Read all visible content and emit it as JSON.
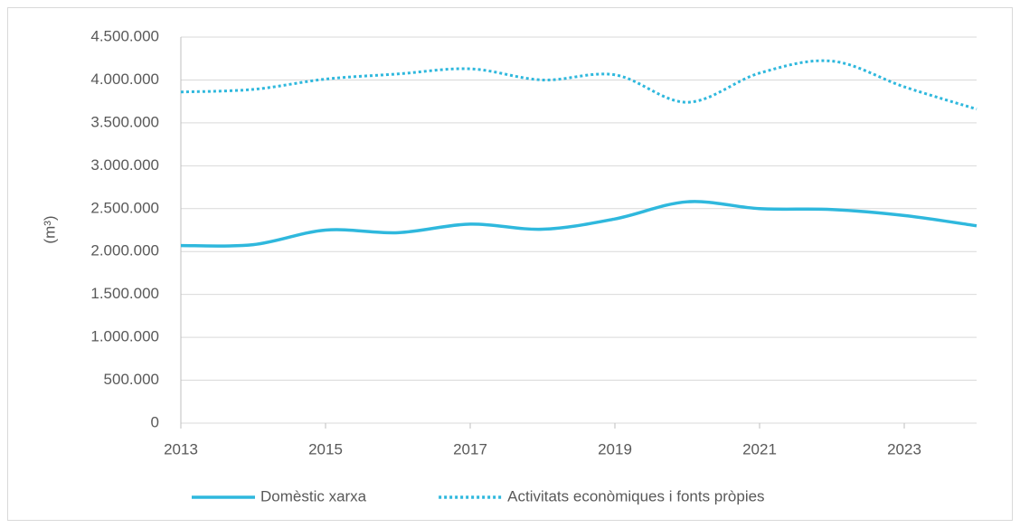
{
  "chart_data": {
    "type": "line",
    "y_label": "(m³)",
    "x": [
      2013,
      2014,
      2015,
      2016,
      2017,
      2018,
      2019,
      2020,
      2021,
      2022,
      2023,
      2024
    ],
    "series": [
      {
        "name": "Domèstic xarxa",
        "color": "#2fb8dd",
        "style": "solid",
        "values": [
          2070000,
          2080000,
          2250000,
          2220000,
          2320000,
          2260000,
          2380000,
          2580000,
          2500000,
          2490000,
          2420000,
          2300000
        ]
      },
      {
        "name": "Activitats econòmiques i fonts pròpies",
        "color": "#2fb8dd",
        "style": "dotted",
        "values": [
          3860000,
          3890000,
          4010000,
          4070000,
          4130000,
          4000000,
          4060000,
          3740000,
          4080000,
          4220000,
          3920000,
          3660000
        ]
      }
    ],
    "xlim": [
      2013,
      2024
    ],
    "xticks": [
      2013,
      2015,
      2017,
      2019,
      2021,
      2023
    ],
    "ylim": [
      0,
      4500000
    ],
    "yticks": [
      0,
      {
        "value": 500000,
        "label": "500.000"
      },
      {
        "value": 1000000,
        "label": "1.000.000"
      },
      {
        "value": 1500000,
        "label": "1.500.000"
      },
      {
        "value": 2000000,
        "label": "2.000.000"
      },
      {
        "value": 2500000,
        "label": "2.500.000"
      },
      {
        "value": 3000000,
        "label": "3.000.000"
      },
      {
        "value": 3500000,
        "label": "3.500.000"
      },
      {
        "value": 4000000,
        "label": "4.000.000"
      },
      {
        "value": 4500000,
        "label": "4.500.000"
      }
    ],
    "grid": true,
    "legend": "bottom"
  }
}
